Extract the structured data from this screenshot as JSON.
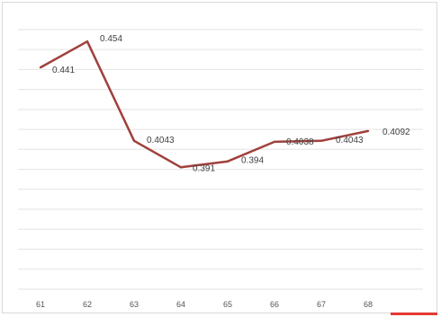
{
  "chart_data": {
    "type": "line",
    "title": "",
    "xlabel": "",
    "ylabel": "",
    "categories": [
      "61",
      "62",
      "63",
      "64",
      "65",
      "66",
      "67",
      "68"
    ],
    "series": [
      {
        "values": [
          0.441,
          0.454,
          0.4043,
          0.391,
          0.394,
          0.4038,
          0.4043,
          0.4092
        ],
        "labels": [
          "0.441",
          "0.454",
          "0.4043",
          "0.391",
          "0.394",
          "0.4038",
          "0.4043",
          "0.4092"
        ],
        "color": "#a0403c"
      }
    ],
    "ylim": [
      0.33,
      0.464
    ],
    "ystep": 0.01,
    "grid": true,
    "legend": "none",
    "colors": {
      "gridline": "#e3e3e3",
      "frame": "#d9d9d9",
      "accent": "#e53935"
    }
  }
}
